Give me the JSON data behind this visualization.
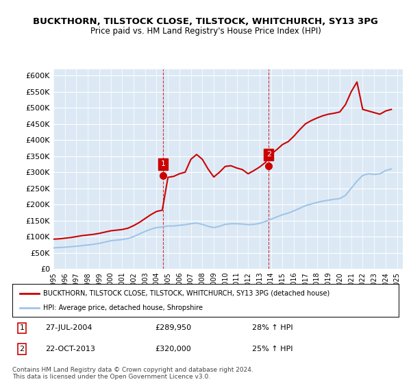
{
  "title": "BUCKTHORN, TILSTOCK CLOSE, TILSTOCK, WHITCHURCH, SY13 3PG",
  "subtitle": "Price paid vs. HM Land Registry's House Price Index (HPI)",
  "bg_color": "#dce9f5",
  "plot_bg_color": "#dce9f5",
  "legend_line1": "BUCKTHORN, TILSTOCK CLOSE, TILSTOCK, WHITCHURCH, SY13 3PG (detached house)",
  "legend_line2": "HPI: Average price, detached house, Shropshire",
  "marker1_date": 2004.57,
  "marker1_label": "1",
  "marker1_price": 289950,
  "marker1_text": "27-JUL-2004    £289,950    28% ↑ HPI",
  "marker2_date": 2013.8,
  "marker2_label": "2",
  "marker2_price": 320000,
  "marker2_text": "22-OCT-2013    £320,000    25% ↑ HPI",
  "footer": "Contains HM Land Registry data © Crown copyright and database right 2024.\nThis data is licensed under the Open Government Licence v3.0.",
  "hpi_color": "#a0c4e8",
  "price_color": "#cc0000",
  "marker_color": "#cc0000",
  "dashed_line_color": "#cc0000",
  "ylim": [
    0,
    620000
  ],
  "yticks": [
    0,
    50000,
    100000,
    150000,
    200000,
    250000,
    300000,
    350000,
    400000,
    450000,
    500000,
    550000,
    600000
  ],
  "hpi_data": {
    "years": [
      1995.0,
      1995.5,
      1996.0,
      1996.5,
      1997.0,
      1997.5,
      1998.0,
      1998.5,
      1999.0,
      1999.5,
      2000.0,
      2000.5,
      2001.0,
      2001.5,
      2002.0,
      2002.5,
      2003.0,
      2003.5,
      2004.0,
      2004.5,
      2005.0,
      2005.5,
      2006.0,
      2006.5,
      2007.0,
      2007.5,
      2008.0,
      2008.5,
      2009.0,
      2009.5,
      2010.0,
      2010.5,
      2011.0,
      2011.5,
      2012.0,
      2012.5,
      2013.0,
      2013.5,
      2014.0,
      2014.5,
      2015.0,
      2015.5,
      2016.0,
      2016.5,
      2017.0,
      2017.5,
      2018.0,
      2018.5,
      2019.0,
      2019.5,
      2020.0,
      2020.5,
      2021.0,
      2021.5,
      2022.0,
      2022.5,
      2023.0,
      2023.5,
      2024.0,
      2024.5
    ],
    "values": [
      65000,
      66000,
      67000,
      68500,
      70000,
      72000,
      74000,
      76000,
      79000,
      83000,
      87000,
      89000,
      91000,
      94000,
      100000,
      108000,
      116000,
      123000,
      128000,
      130000,
      133000,
      133000,
      135000,
      137000,
      140000,
      142000,
      138000,
      132000,
      128000,
      132000,
      138000,
      140000,
      140000,
      139000,
      137000,
      138000,
      141000,
      147000,
      154000,
      161000,
      168000,
      173000,
      180000,
      188000,
      196000,
      201000,
      206000,
      210000,
      213000,
      216000,
      218000,
      228000,
      250000,
      272000,
      290000,
      295000,
      293000,
      295000,
      305000,
      310000
    ]
  },
  "price_data": {
    "years": [
      1995.0,
      1995.5,
      1996.0,
      1996.5,
      1997.0,
      1997.5,
      1998.0,
      1998.5,
      1999.0,
      1999.5,
      2000.0,
      2000.5,
      2001.0,
      2001.5,
      2002.0,
      2002.5,
      2003.0,
      2003.5,
      2004.0,
      2004.5,
      2005.0,
      2005.5,
      2006.0,
      2006.5,
      2007.0,
      2007.5,
      2008.0,
      2008.5,
      2009.0,
      2009.5,
      2010.0,
      2010.5,
      2011.0,
      2011.5,
      2012.0,
      2012.5,
      2013.0,
      2013.5,
      2014.0,
      2014.5,
      2015.0,
      2015.5,
      2016.0,
      2016.5,
      2017.0,
      2017.5,
      2018.0,
      2018.5,
      2019.0,
      2019.5,
      2020.0,
      2020.5,
      2021.0,
      2021.5,
      2022.0,
      2022.5,
      2023.0,
      2023.5,
      2024.0,
      2024.5
    ],
    "values": [
      92000,
      93000,
      95000,
      97000,
      100000,
      103000,
      105000,
      107000,
      110000,
      114000,
      118000,
      120000,
      122000,
      126000,
      134000,
      144000,
      156000,
      168000,
      178000,
      182000,
      284000,
      287000,
      295000,
      300000,
      340000,
      355000,
      340000,
      310000,
      285000,
      300000,
      318000,
      320000,
      313000,
      308000,
      295000,
      305000,
      316000,
      330000,
      356000,
      370000,
      386000,
      395000,
      412000,
      432000,
      450000,
      460000,
      468000,
      475000,
      480000,
      483000,
      487000,
      510000,
      550000,
      580000,
      495000,
      490000,
      485000,
      480000,
      490000,
      495000
    ]
  }
}
